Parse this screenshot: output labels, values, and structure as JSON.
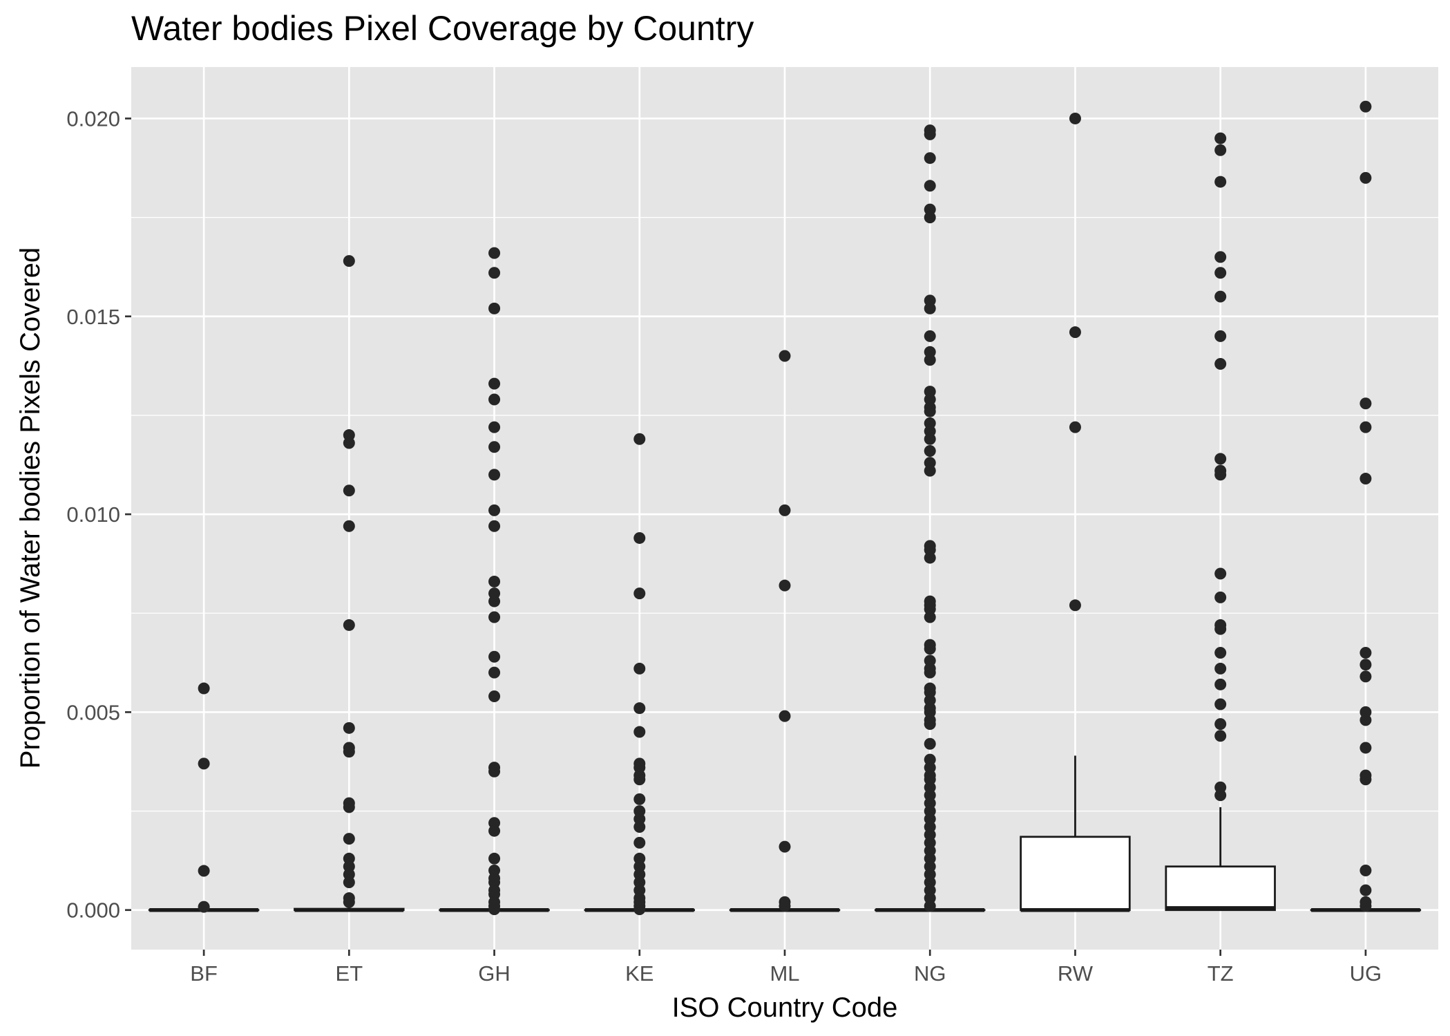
{
  "chart_data": {
    "type": "box",
    "title": "Water bodies Pixel Coverage by Country",
    "xlabel": "ISO Country Code",
    "ylabel": "Proportion of Water bodies Pixels Covered",
    "categories": [
      "BF",
      "ET",
      "GH",
      "KE",
      "ML",
      "NG",
      "RW",
      "TZ",
      "UG"
    ],
    "ylim": [
      -0.001,
      0.0213
    ],
    "y_ticks": [
      0.0,
      0.005,
      0.01,
      0.015,
      0.02
    ],
    "y_tick_labels": [
      "0.000",
      "0.005",
      "0.010",
      "0.015",
      "0.020"
    ],
    "grid": true,
    "panel_background": "#e5e5e5",
    "grid_color": "#ffffff",
    "box_fill": "#ffffff",
    "box_stroke": "#1a1a1a",
    "point_color": "#262626",
    "boxes": [
      {
        "category": "BF",
        "min": 0.0,
        "q1": 0.0,
        "median": 0.0,
        "q3": 0.0,
        "max": 0.0,
        "outliers": [
          0.0056,
          0.0037,
          0.00099,
          8e-05
        ]
      },
      {
        "category": "ET",
        "min": 0.0,
        "q1": 0.0,
        "median": 0.0,
        "q3": 3e-05,
        "max": 6e-05,
        "outliers": [
          0.0164,
          0.012,
          0.0118,
          0.0106,
          0.0097,
          0.0072,
          0.0046,
          0.0041,
          0.004,
          0.0027,
          0.0026,
          0.0018,
          0.0013,
          0.0011,
          0.0009,
          0.0007,
          0.0003,
          0.0002
        ]
      },
      {
        "category": "GH",
        "min": 0.0,
        "q1": 0.0,
        "median": 0.0,
        "q3": 0.0,
        "max": 0.0,
        "outliers": [
          0.0166,
          0.0161,
          0.0152,
          0.0133,
          0.0129,
          0.0122,
          0.0117,
          0.011,
          0.0101,
          0.0097,
          0.0083,
          0.008,
          0.0078,
          0.0074,
          0.0064,
          0.006,
          0.0054,
          0.0036,
          0.0035,
          0.0022,
          0.002,
          0.0013,
          0.001,
          0.0008,
          0.0007,
          0.0005,
          0.0004,
          0.0002,
          0.0001,
          2e-05
        ]
      },
      {
        "category": "KE",
        "min": 0.0,
        "q1": 0.0,
        "median": 0.0,
        "q3": 0.0,
        "max": 0.0,
        "outliers": [
          0.0119,
          0.0094,
          0.008,
          0.0061,
          0.0051,
          0.0045,
          0.0037,
          0.0036,
          0.0034,
          0.0033,
          0.0028,
          0.0025,
          0.0023,
          0.0021,
          0.0017,
          0.0013,
          0.0011,
          0.0009,
          0.0007,
          0.0005,
          0.0003,
          0.0002,
          0.0001,
          2e-05
        ]
      },
      {
        "category": "ML",
        "min": 0.0,
        "q1": 0.0,
        "median": 0.0,
        "q3": 0.0,
        "max": 0.0,
        "outliers": [
          0.014,
          0.0101,
          0.0082,
          0.0049,
          0.0016,
          0.0002,
          0.0001
        ]
      },
      {
        "category": "NG",
        "min": 0.0,
        "q1": 0.0,
        "median": 0.0,
        "q3": 0.0,
        "max": 0.0,
        "outliers": [
          0.0197,
          0.0196,
          0.019,
          0.0183,
          0.0177,
          0.0175,
          0.0154,
          0.0152,
          0.0145,
          0.0141,
          0.0139,
          0.0131,
          0.0129,
          0.0127,
          0.0126,
          0.0123,
          0.0121,
          0.0119,
          0.0116,
          0.0113,
          0.0111,
          0.0092,
          0.0091,
          0.0089,
          0.0078,
          0.0077,
          0.0076,
          0.0074,
          0.0067,
          0.0066,
          0.0063,
          0.0061,
          0.006,
          0.0056,
          0.0055,
          0.0053,
          0.0051,
          0.005,
          0.0048,
          0.0047,
          0.0042,
          0.0038,
          0.0036,
          0.0034,
          0.0033,
          0.0031,
          0.0029,
          0.0027,
          0.0025,
          0.0023,
          0.0021,
          0.0019,
          0.0017,
          0.0015,
          0.0013,
          0.0011,
          0.0009,
          0.0007,
          0.0005,
          0.0003,
          0.0001
        ]
      },
      {
        "category": "RW",
        "min": 0.0,
        "q1": 0.0,
        "median": 0.0,
        "q3": 0.00185,
        "max": 0.0039,
        "outliers": [
          0.02,
          0.0146,
          0.0122,
          0.0077
        ]
      },
      {
        "category": "TZ",
        "min": 0.0,
        "q1": 0.0,
        "median": 5e-05,
        "q3": 0.0011,
        "max": 0.0026,
        "outliers": [
          0.0195,
          0.0192,
          0.0184,
          0.0165,
          0.0161,
          0.0155,
          0.0145,
          0.0138,
          0.0114,
          0.0111,
          0.011,
          0.0085,
          0.0079,
          0.0072,
          0.0071,
          0.0065,
          0.0061,
          0.0057,
          0.0052,
          0.0047,
          0.0044,
          0.0031,
          0.0029
        ]
      },
      {
        "category": "UG",
        "min": 0.0,
        "q1": 0.0,
        "median": 0.0,
        "q3": 0.0,
        "max": 0.0,
        "outliers": [
          0.0203,
          0.0185,
          0.0128,
          0.0122,
          0.0109,
          0.0065,
          0.0062,
          0.0059,
          0.005,
          0.0048,
          0.0041,
          0.0034,
          0.0033,
          0.001,
          0.0005,
          0.0002,
          0.0001
        ]
      }
    ]
  }
}
